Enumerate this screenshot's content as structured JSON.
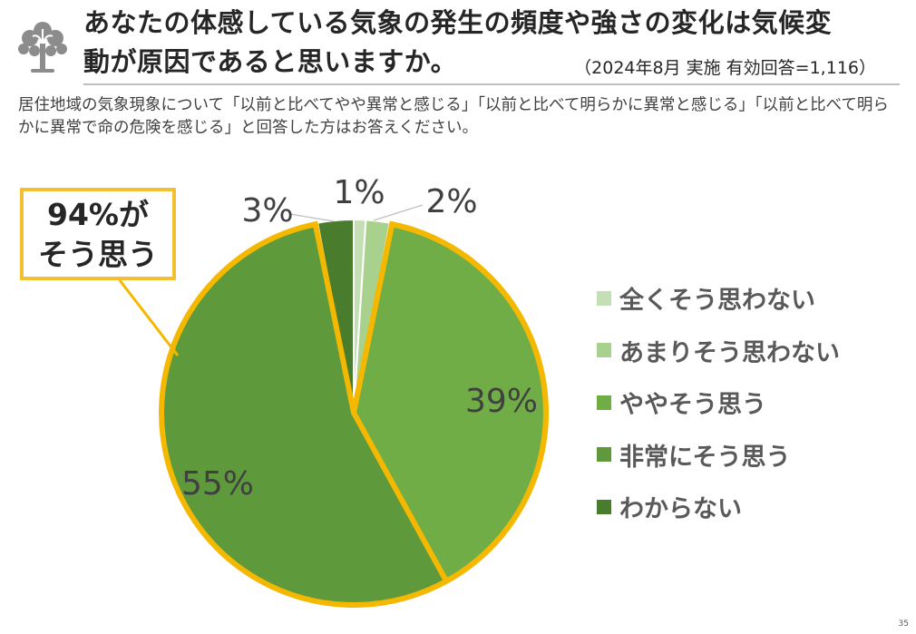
{
  "header": {
    "title_line1": "あなたの体感している気象の発生の頻度や強さの変化は気候変",
    "title_line2": "動が原因であると思いますか。",
    "survey_note": "（2024年8月 実施 有効回答=1,116）",
    "logo_icon": "tree-logo-icon"
  },
  "subtitle": "居住地域の気象現象について「以前と比べてやや異常と感じる」「以前と比べて明らかに異常と感じる」「以前と比べて明らかに異常で命の危険を感じる」と回答した方はお答えください。",
  "callout": {
    "line1": "94%が",
    "line2": "そう思う",
    "border_color": "#f2c030"
  },
  "chart_data": {
    "type": "pie",
    "start": "12 o'clock, clockwise",
    "categories": [
      "全くそう思わない",
      "あまりそう思わない",
      "ややそう思う",
      "非常にそう思う",
      "わからない"
    ],
    "values": [
      1,
      2,
      39,
      55,
      3
    ],
    "labels": [
      "1%",
      "2%",
      "39%",
      "55%",
      "3%"
    ],
    "colors": [
      "#c5dfb4",
      "#a9d18e",
      "#70ad47",
      "#5e9a3b",
      "#4a7c2e"
    ],
    "highlight_outline_color": "#f5b800",
    "legend_position": "right"
  },
  "page_number": "35"
}
